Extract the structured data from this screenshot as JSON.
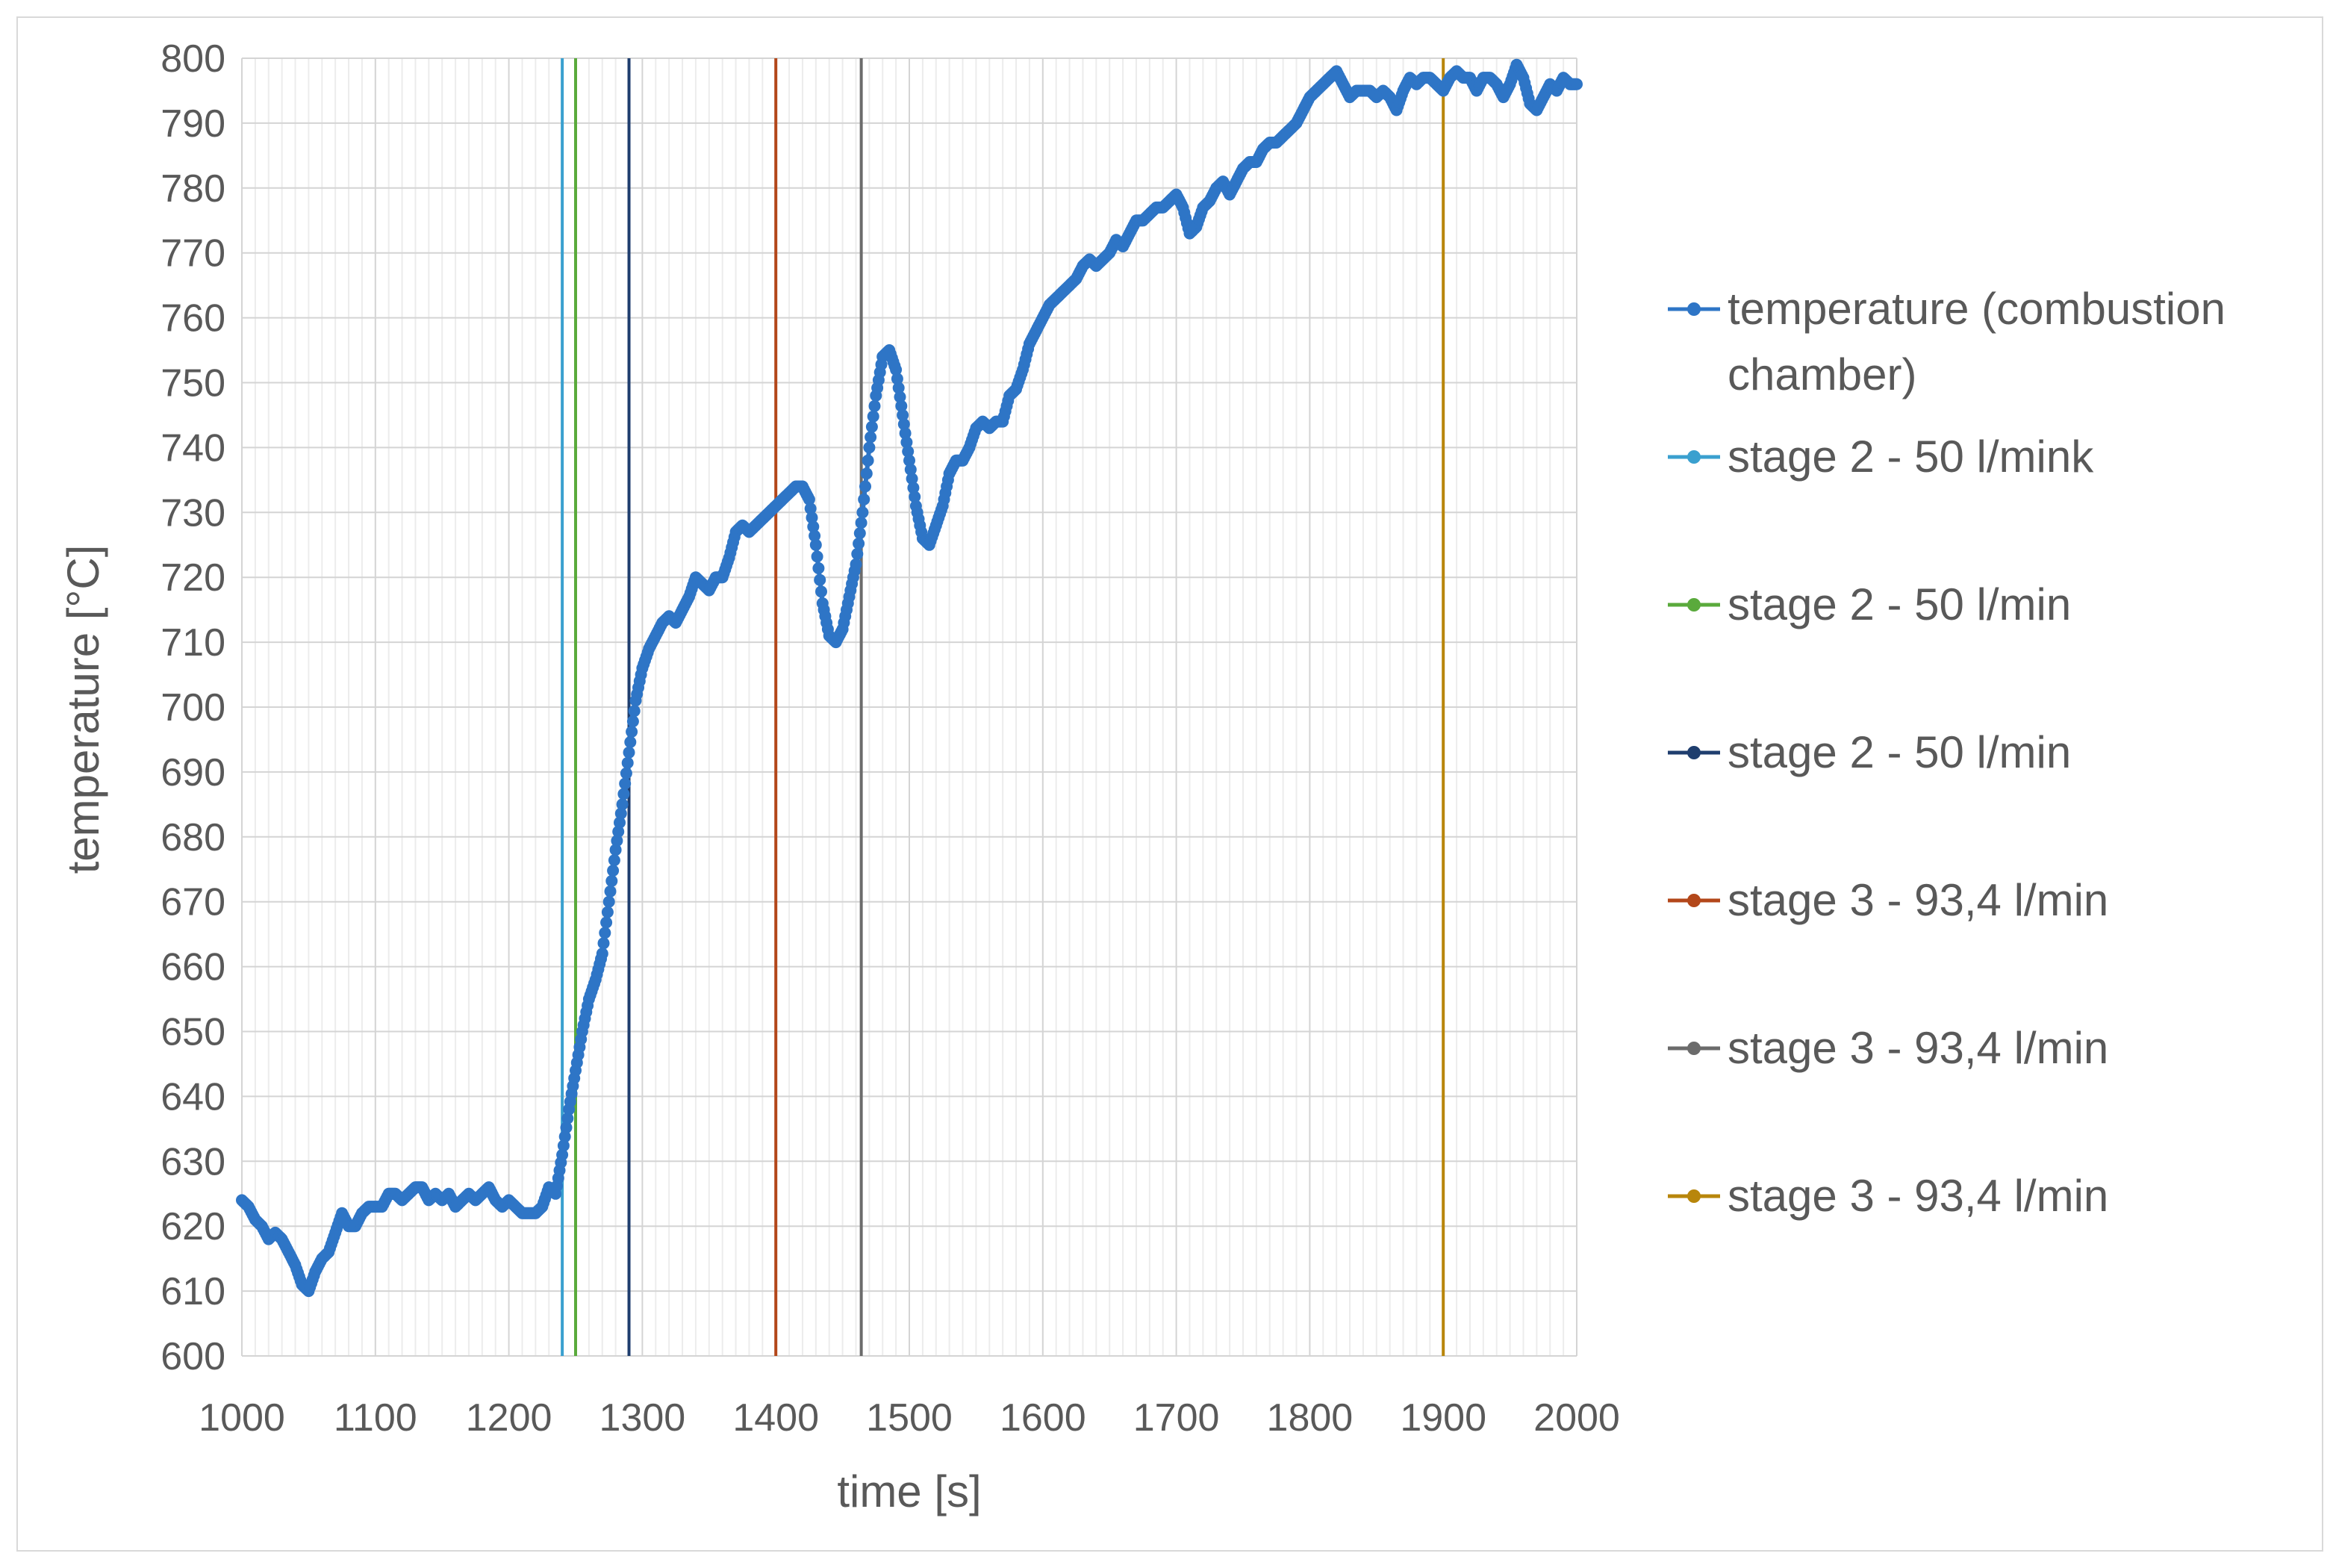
{
  "chart_data": {
    "type": "line",
    "title": "",
    "xlabel": "time [s]",
    "ylabel": "temperature [°C]",
    "xlim": [
      1000,
      2000
    ],
    "ylim": [
      600,
      800
    ],
    "x_ticks": [
      1000,
      1100,
      1200,
      1300,
      1400,
      1500,
      1600,
      1700,
      1800,
      1900,
      2000
    ],
    "y_ticks": [
      600,
      610,
      620,
      630,
      640,
      650,
      660,
      670,
      680,
      690,
      700,
      710,
      720,
      730,
      740,
      750,
      760,
      770,
      780,
      790,
      800
    ],
    "grid": true,
    "legend_position": "right",
    "series": [
      {
        "name": "temperature (combustion chamber)",
        "color": "#2e75c6",
        "marker": "circle",
        "points": [
          [
            1000,
            624
          ],
          [
            1005,
            623
          ],
          [
            1010,
            621
          ],
          [
            1015,
            620
          ],
          [
            1020,
            618
          ],
          [
            1025,
            619
          ],
          [
            1030,
            618
          ],
          [
            1035,
            616
          ],
          [
            1040,
            614
          ],
          [
            1045,
            611
          ],
          [
            1050,
            610
          ],
          [
            1055,
            613
          ],
          [
            1060,
            615
          ],
          [
            1065,
            616
          ],
          [
            1070,
            619
          ],
          [
            1075,
            622
          ],
          [
            1080,
            620
          ],
          [
            1085,
            620
          ],
          [
            1090,
            622
          ],
          [
            1095,
            623
          ],
          [
            1100,
            623
          ],
          [
            1105,
            623
          ],
          [
            1110,
            625
          ],
          [
            1115,
            625
          ],
          [
            1120,
            624
          ],
          [
            1125,
            625
          ],
          [
            1130,
            626
          ],
          [
            1135,
            626
          ],
          [
            1140,
            624
          ],
          [
            1145,
            625
          ],
          [
            1150,
            624
          ],
          [
            1155,
            625
          ],
          [
            1160,
            623
          ],
          [
            1165,
            624
          ],
          [
            1170,
            625
          ],
          [
            1175,
            624
          ],
          [
            1180,
            625
          ],
          [
            1185,
            626
          ],
          [
            1190,
            624
          ],
          [
            1195,
            623
          ],
          [
            1200,
            624
          ],
          [
            1205,
            623
          ],
          [
            1210,
            622
          ],
          [
            1215,
            622
          ],
          [
            1220,
            622
          ],
          [
            1225,
            623
          ],
          [
            1230,
            626
          ],
          [
            1235,
            625
          ],
          [
            1240,
            631
          ],
          [
            1245,
            638
          ],
          [
            1250,
            644
          ],
          [
            1255,
            650
          ],
          [
            1260,
            655
          ],
          [
            1265,
            658
          ],
          [
            1270,
            662
          ],
          [
            1275,
            670
          ],
          [
            1280,
            678
          ],
          [
            1285,
            685
          ],
          [
            1290,
            693
          ],
          [
            1295,
            701
          ],
          [
            1300,
            706
          ],
          [
            1305,
            709
          ],
          [
            1310,
            711
          ],
          [
            1315,
            713
          ],
          [
            1320,
            714
          ],
          [
            1325,
            713
          ],
          [
            1330,
            715
          ],
          [
            1335,
            717
          ],
          [
            1340,
            720
          ],
          [
            1345,
            719
          ],
          [
            1350,
            718
          ],
          [
            1355,
            720
          ],
          [
            1360,
            720
          ],
          [
            1365,
            723
          ],
          [
            1370,
            727
          ],
          [
            1375,
            728
          ],
          [
            1380,
            727
          ],
          [
            1385,
            728
          ],
          [
            1390,
            729
          ],
          [
            1395,
            730
          ],
          [
            1400,
            731
          ],
          [
            1405,
            732
          ],
          [
            1410,
            733
          ],
          [
            1415,
            734
          ],
          [
            1420,
            734
          ],
          [
            1425,
            732
          ],
          [
            1430,
            725
          ],
          [
            1435,
            716
          ],
          [
            1440,
            711
          ],
          [
            1445,
            710
          ],
          [
            1450,
            712
          ],
          [
            1455,
            717
          ],
          [
            1460,
            722
          ],
          [
            1465,
            730
          ],
          [
            1470,
            740
          ],
          [
            1475,
            748
          ],
          [
            1480,
            754
          ],
          [
            1485,
            755
          ],
          [
            1490,
            752
          ],
          [
            1495,
            745
          ],
          [
            1500,
            738
          ],
          [
            1505,
            731
          ],
          [
            1510,
            726
          ],
          [
            1515,
            725
          ],
          [
            1520,
            728
          ],
          [
            1525,
            731
          ],
          [
            1530,
            736
          ],
          [
            1535,
            738
          ],
          [
            1540,
            738
          ],
          [
            1545,
            740
          ],
          [
            1550,
            743
          ],
          [
            1555,
            744
          ],
          [
            1560,
            743
          ],
          [
            1565,
            744
          ],
          [
            1570,
            744
          ],
          [
            1575,
            748
          ],
          [
            1580,
            749
          ],
          [
            1585,
            752
          ],
          [
            1590,
            756
          ],
          [
            1595,
            758
          ],
          [
            1600,
            760
          ],
          [
            1605,
            762
          ],
          [
            1610,
            763
          ],
          [
            1615,
            764
          ],
          [
            1620,
            765
          ],
          [
            1625,
            766
          ],
          [
            1630,
            768
          ],
          [
            1635,
            769
          ],
          [
            1640,
            768
          ],
          [
            1645,
            769
          ],
          [
            1650,
            770
          ],
          [
            1655,
            772
          ],
          [
            1660,
            771
          ],
          [
            1665,
            773
          ],
          [
            1670,
            775
          ],
          [
            1675,
            775
          ],
          [
            1680,
            776
          ],
          [
            1685,
            777
          ],
          [
            1690,
            777
          ],
          [
            1695,
            778
          ],
          [
            1700,
            779
          ],
          [
            1705,
            777
          ],
          [
            1710,
            773
          ],
          [
            1715,
            774
          ],
          [
            1720,
            777
          ],
          [
            1725,
            778
          ],
          [
            1730,
            780
          ],
          [
            1735,
            781
          ],
          [
            1740,
            779
          ],
          [
            1745,
            781
          ],
          [
            1750,
            783
          ],
          [
            1755,
            784
          ],
          [
            1760,
            784
          ],
          [
            1765,
            786
          ],
          [
            1770,
            787
          ],
          [
            1775,
            787
          ],
          [
            1780,
            788
          ],
          [
            1785,
            789
          ],
          [
            1790,
            790
          ],
          [
            1795,
            792
          ],
          [
            1800,
            794
          ],
          [
            1805,
            795
          ],
          [
            1810,
            796
          ],
          [
            1815,
            797
          ],
          [
            1820,
            798
          ],
          [
            1825,
            796
          ],
          [
            1830,
            794
          ],
          [
            1835,
            795
          ],
          [
            1840,
            795
          ],
          [
            1845,
            795
          ],
          [
            1850,
            794
          ],
          [
            1855,
            795
          ],
          [
            1860,
            794
          ],
          [
            1865,
            792
          ],
          [
            1870,
            795
          ],
          [
            1875,
            797
          ],
          [
            1880,
            796
          ],
          [
            1885,
            797
          ],
          [
            1890,
            797
          ],
          [
            1895,
            796
          ],
          [
            1900,
            795
          ],
          [
            1905,
            797
          ],
          [
            1910,
            798
          ],
          [
            1915,
            797
          ],
          [
            1920,
            797
          ],
          [
            1925,
            795
          ],
          [
            1930,
            797
          ],
          [
            1935,
            797
          ],
          [
            1940,
            796
          ],
          [
            1945,
            794
          ],
          [
            1950,
            796
          ],
          [
            1955,
            799
          ],
          [
            1960,
            797
          ],
          [
            1965,
            793
          ],
          [
            1970,
            792
          ],
          [
            1975,
            794
          ],
          [
            1980,
            796
          ],
          [
            1985,
            795
          ],
          [
            1990,
            797
          ],
          [
            1995,
            796
          ],
          [
            2000,
            796
          ]
        ]
      },
      {
        "name": "stage 2 - 50 l/mink",
        "color": "#3aa0cf",
        "x": 1240,
        "marker": "circle"
      },
      {
        "name": "stage 2 - 50 l/min",
        "color": "#5aaa3c",
        "x": 1250,
        "marker": "circle"
      },
      {
        "name": "stage 2 - 50 l/min",
        "color": "#1f3e6e",
        "x": 1290,
        "marker": "circle"
      },
      {
        "name": "stage 3 - 93,4 l/min",
        "color": "#b3471a",
        "x": 1400,
        "marker": "circle"
      },
      {
        "name": "stage 3 - 93,4 l/min",
        "color": "#6b6b6b",
        "x": 1464,
        "marker": "circle"
      },
      {
        "name": "stage 3 - 93,4 l/min",
        "color": "#b8860b",
        "x": 1900,
        "marker": "circle"
      }
    ],
    "legend_extra_line": "chamber)"
  }
}
